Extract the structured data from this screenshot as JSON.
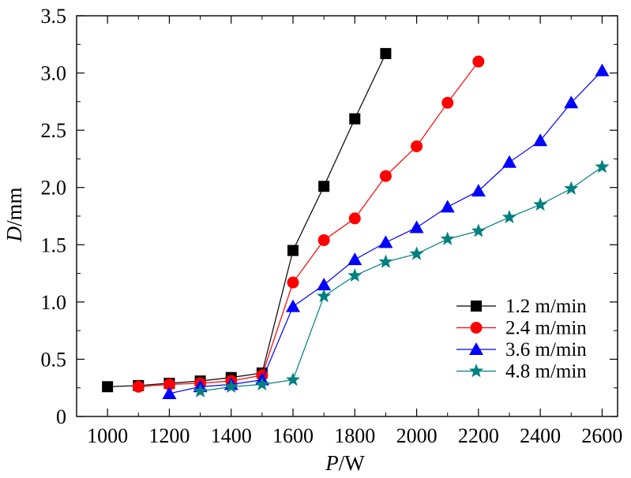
{
  "chart_data": {
    "type": "line",
    "xlabel": {
      "italic": "P",
      "rest": "/W"
    },
    "ylabel": {
      "italic": "D",
      "rest": "/mm"
    },
    "xlim": [
      900,
      2650
    ],
    "ylim": [
      0,
      3.5
    ],
    "xticks": [
      1000,
      1200,
      1400,
      1600,
      1800,
      2000,
      2200,
      2400,
      2600
    ],
    "xtick_labels": [
      "1000",
      "1200",
      "1400",
      "1600",
      "1800",
      "2000",
      "2200",
      "2400",
      "2600"
    ],
    "yticks": [
      0,
      0.5,
      1.0,
      1.5,
      2.0,
      2.5,
      3.0,
      3.5
    ],
    "ytick_labels": [
      "0",
      "0.5",
      "1.0",
      "1.5",
      "2.0",
      "2.5",
      "3.0",
      "3.5"
    ],
    "grid": false,
    "legend_position": "bottom-right",
    "series": [
      {
        "name": "1.2 m/min",
        "color": "#000000",
        "marker": "square",
        "x": [
          1000,
          1100,
          1200,
          1300,
          1400,
          1500,
          1600,
          1700,
          1800,
          1900
        ],
        "y": [
          0.26,
          0.27,
          0.29,
          0.31,
          0.34,
          0.38,
          1.45,
          2.01,
          2.6,
          3.17
        ]
      },
      {
        "name": "2.4 m/min",
        "color": "#ff0000",
        "marker": "circle",
        "x": [
          1100,
          1200,
          1300,
          1400,
          1500,
          1600,
          1700,
          1800,
          1900,
          2000,
          2100,
          2200
        ],
        "y": [
          0.26,
          0.28,
          0.29,
          0.31,
          0.36,
          1.17,
          1.54,
          1.73,
          2.1,
          2.36,
          2.74,
          3.1
        ]
      },
      {
        "name": "3.6 m/min",
        "color": "#0000ff",
        "marker": "triangle",
        "x": [
          1200,
          1300,
          1400,
          1500,
          1600,
          1700,
          1800,
          1900,
          2000,
          2100,
          2200,
          2300,
          2400,
          2500,
          2600
        ],
        "y": [
          0.2,
          0.26,
          0.28,
          0.32,
          0.96,
          1.15,
          1.37,
          1.52,
          1.65,
          1.83,
          1.97,
          2.22,
          2.41,
          2.74,
          3.02
        ]
      },
      {
        "name": "4.8 m/min",
        "color": "#008080",
        "marker": "star",
        "x": [
          1300,
          1400,
          1500,
          1600,
          1700,
          1800,
          1900,
          2000,
          2100,
          2200,
          2300,
          2400,
          2500,
          2600
        ],
        "y": [
          0.22,
          0.26,
          0.28,
          0.32,
          1.05,
          1.23,
          1.35,
          1.42,
          1.55,
          1.62,
          1.74,
          1.85,
          1.99,
          2.18
        ]
      }
    ]
  }
}
